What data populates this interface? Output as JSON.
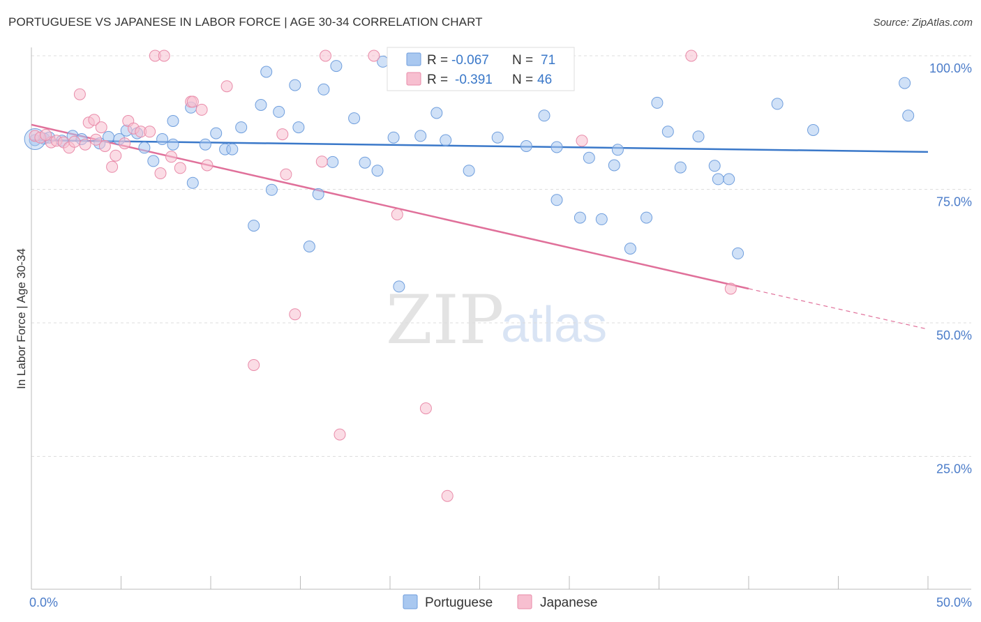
{
  "title": "PORTUGUESE VS JAPANESE IN LABOR FORCE | AGE 30-34 CORRELATION CHART",
  "source": "Source: ZipAtlas.com",
  "watermark": {
    "zip": "ZIP",
    "atlas": "atlas"
  },
  "colors": {
    "portuguese_fill": "#a9c8f0",
    "portuguese_stroke": "#6f9edd",
    "portuguese_line": "#3a78c9",
    "japanese_fill": "#f7bfd0",
    "japanese_stroke": "#e98ba9",
    "japanese_line": "#e0709a",
    "tick_text": "#4b7cc9",
    "grid": "#dddddd"
  },
  "legend": {
    "rows": [
      {
        "r_label": "R =",
        "r_value": "-0.067",
        "n_label": "N =",
        "n_value": "71"
      },
      {
        "r_label": "R =",
        "r_value": "-0.391",
        "n_label": "N =",
        "n_value": "46"
      }
    ],
    "bottom": [
      "Portuguese",
      "Japanese"
    ]
  },
  "chart_data": {
    "type": "scatter",
    "title": "PORTUGUESE VS JAPANESE IN LABOR FORCE | AGE 30-34 CORRELATION CHART",
    "xlabel": "",
    "ylabel": "In Labor Force | Age 30-34",
    "xlim": [
      0,
      50
    ],
    "ylim": [
      0,
      102
    ],
    "x_tick_labels": [
      {
        "value": 0,
        "label": "0.0%"
      },
      {
        "value": 50,
        "label": "50.0%"
      }
    ],
    "y_tick_labels": [
      {
        "value": 100,
        "label": "100.0%"
      },
      {
        "value": 75,
        "label": "75.0%"
      },
      {
        "value": 50,
        "label": "50.0%"
      },
      {
        "value": 25,
        "label": "25.0%"
      }
    ],
    "grid": true,
    "series": [
      {
        "name": "Portuguese",
        "r": -0.067,
        "n": 71,
        "trend": {
          "x0": 0,
          "y0": 84.2,
          "x1": 50,
          "y1": 82.0
        },
        "points": [
          [
            0.2,
            84.2
          ],
          [
            0.7,
            84.5
          ],
          [
            1.0,
            84.7
          ],
          [
            1.7,
            84.1
          ],
          [
            2.3,
            85.0
          ],
          [
            2.8,
            84.4
          ],
          [
            3.8,
            83.6
          ],
          [
            4.3,
            84.8
          ],
          [
            4.9,
            84.4
          ],
          [
            5.3,
            86.0
          ],
          [
            5.9,
            85.5
          ],
          [
            6.3,
            82.8
          ],
          [
            6.8,
            80.3
          ],
          [
            7.3,
            84.4
          ],
          [
            7.9,
            83.4
          ],
          [
            7.9,
            87.8
          ],
          [
            8.9,
            90.3
          ],
          [
            9.0,
            76.2
          ],
          [
            9.7,
            83.4
          ],
          [
            10.3,
            85.5
          ],
          [
            10.8,
            82.5
          ],
          [
            11.2,
            82.5
          ],
          [
            11.7,
            86.6
          ],
          [
            12.4,
            68.2
          ],
          [
            12.8,
            90.8
          ],
          [
            13.4,
            74.9
          ],
          [
            13.8,
            89.5
          ],
          [
            14.7,
            94.5
          ],
          [
            14.9,
            86.6
          ],
          [
            15.5,
            64.3
          ],
          [
            16.0,
            74.1
          ],
          [
            16.3,
            93.7
          ],
          [
            16.8,
            80.1
          ],
          [
            18.0,
            88.3
          ],
          [
            18.6,
            80.0
          ],
          [
            19.3,
            78.5
          ],
          [
            19.6,
            98.9
          ],
          [
            20.2,
            84.7
          ],
          [
            20.5,
            56.8
          ],
          [
            21.7,
            85.0
          ],
          [
            22.6,
            89.3
          ],
          [
            23.1,
            84.2
          ],
          [
            24.4,
            78.5
          ],
          [
            26.0,
            84.7
          ],
          [
            27.6,
            83.1
          ],
          [
            28.6,
            99.8
          ],
          [
            28.6,
            88.8
          ],
          [
            29.3,
            82.9
          ],
          [
            29.3,
            73.0
          ],
          [
            30.6,
            69.7
          ],
          [
            31.1,
            80.9
          ],
          [
            31.8,
            69.4
          ],
          [
            32.5,
            79.5
          ],
          [
            32.7,
            82.4
          ],
          [
            33.4,
            63.9
          ],
          [
            34.3,
            69.7
          ],
          [
            34.9,
            91.2
          ],
          [
            35.5,
            85.8
          ],
          [
            36.2,
            79.1
          ],
          [
            37.2,
            84.9
          ],
          [
            38.1,
            79.4
          ],
          [
            38.3,
            76.9
          ],
          [
            38.9,
            76.9
          ],
          [
            39.4,
            63.0
          ],
          [
            41.6,
            91.0
          ],
          [
            43.6,
            86.1
          ],
          [
            48.7,
            94.9
          ],
          [
            48.9,
            88.8
          ],
          [
            17.0,
            98.1
          ],
          [
            26.9,
            99.6
          ],
          [
            13.1,
            97.0
          ]
        ]
      },
      {
        "name": "Japanese",
        "r": -0.391,
        "n": 46,
        "trend": {
          "x0": 0,
          "y0": 87.1,
          "x1": 40.0,
          "y1": 56.4
        },
        "trend_dashed": {
          "x0": 40.0,
          "y0": 56.4,
          "x1": 50,
          "y1": 48.8
        },
        "points": [
          [
            0.2,
            85.0
          ],
          [
            0.5,
            84.7
          ],
          [
            1.1,
            83.8
          ],
          [
            1.4,
            84.1
          ],
          [
            1.8,
            83.8
          ],
          [
            2.1,
            82.8
          ],
          [
            2.4,
            83.9
          ],
          [
            2.7,
            92.8
          ],
          [
            3.0,
            83.4
          ],
          [
            3.2,
            87.5
          ],
          [
            3.5,
            88.0
          ],
          [
            3.9,
            86.6
          ],
          [
            4.1,
            83.1
          ],
          [
            4.5,
            79.2
          ],
          [
            4.7,
            81.3
          ],
          [
            5.2,
            83.6
          ],
          [
            5.4,
            87.8
          ],
          [
            5.7,
            86.4
          ],
          [
            6.1,
            85.8
          ],
          [
            6.6,
            85.8
          ],
          [
            6.9,
            100.0
          ],
          [
            7.2,
            78.0
          ],
          [
            7.4,
            100.0
          ],
          [
            7.8,
            81.1
          ],
          [
            8.3,
            79.0
          ],
          [
            8.9,
            91.4
          ],
          [
            9.0,
            91.4
          ],
          [
            9.5,
            89.9
          ],
          [
            9.8,
            79.5
          ],
          [
            10.9,
            94.3
          ],
          [
            12.4,
            42.1
          ],
          [
            14.0,
            85.3
          ],
          [
            14.2,
            77.8
          ],
          [
            14.7,
            51.6
          ],
          [
            16.2,
            80.2
          ],
          [
            16.4,
            100.0
          ],
          [
            17.2,
            29.1
          ],
          [
            19.1,
            100.0
          ],
          [
            20.4,
            70.3
          ],
          [
            22.0,
            34.0
          ],
          [
            23.2,
            17.6
          ],
          [
            30.7,
            84.1
          ],
          [
            36.8,
            100.0
          ],
          [
            39.0,
            56.4
          ],
          [
            0.8,
            85.2
          ],
          [
            3.6,
            84.3
          ]
        ]
      }
    ]
  }
}
